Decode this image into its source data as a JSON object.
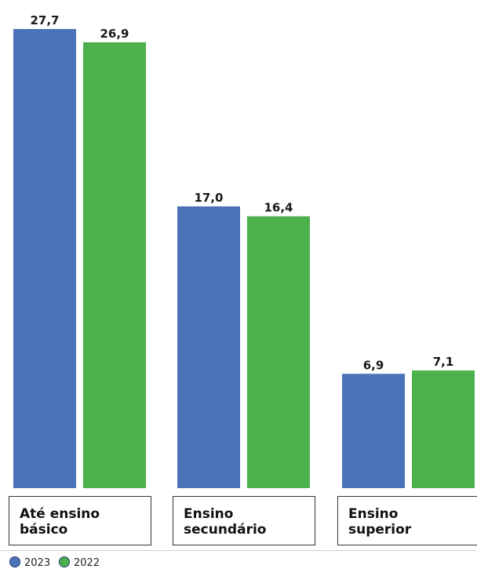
{
  "chart_data": {
    "type": "bar",
    "categories": [
      [
        "Até ensino",
        "básico"
      ],
      [
        "Ensino",
        "secundário"
      ],
      [
        "Ensino",
        "superior"
      ]
    ],
    "series": [
      {
        "name": "2023",
        "color": "#4a72b8",
        "values": [
          27.7,
          17.0,
          6.9
        ],
        "labels": [
          "27,7",
          "17,0",
          "6,9"
        ]
      },
      {
        "name": "2022",
        "color": "#4cb14c",
        "values": [
          26.9,
          16.4,
          7.1
        ],
        "labels": [
          "26,9",
          "16,4",
          "7,1"
        ]
      }
    ],
    "ylim": [
      0,
      27.7
    ],
    "legend_position": "bottom-left"
  }
}
